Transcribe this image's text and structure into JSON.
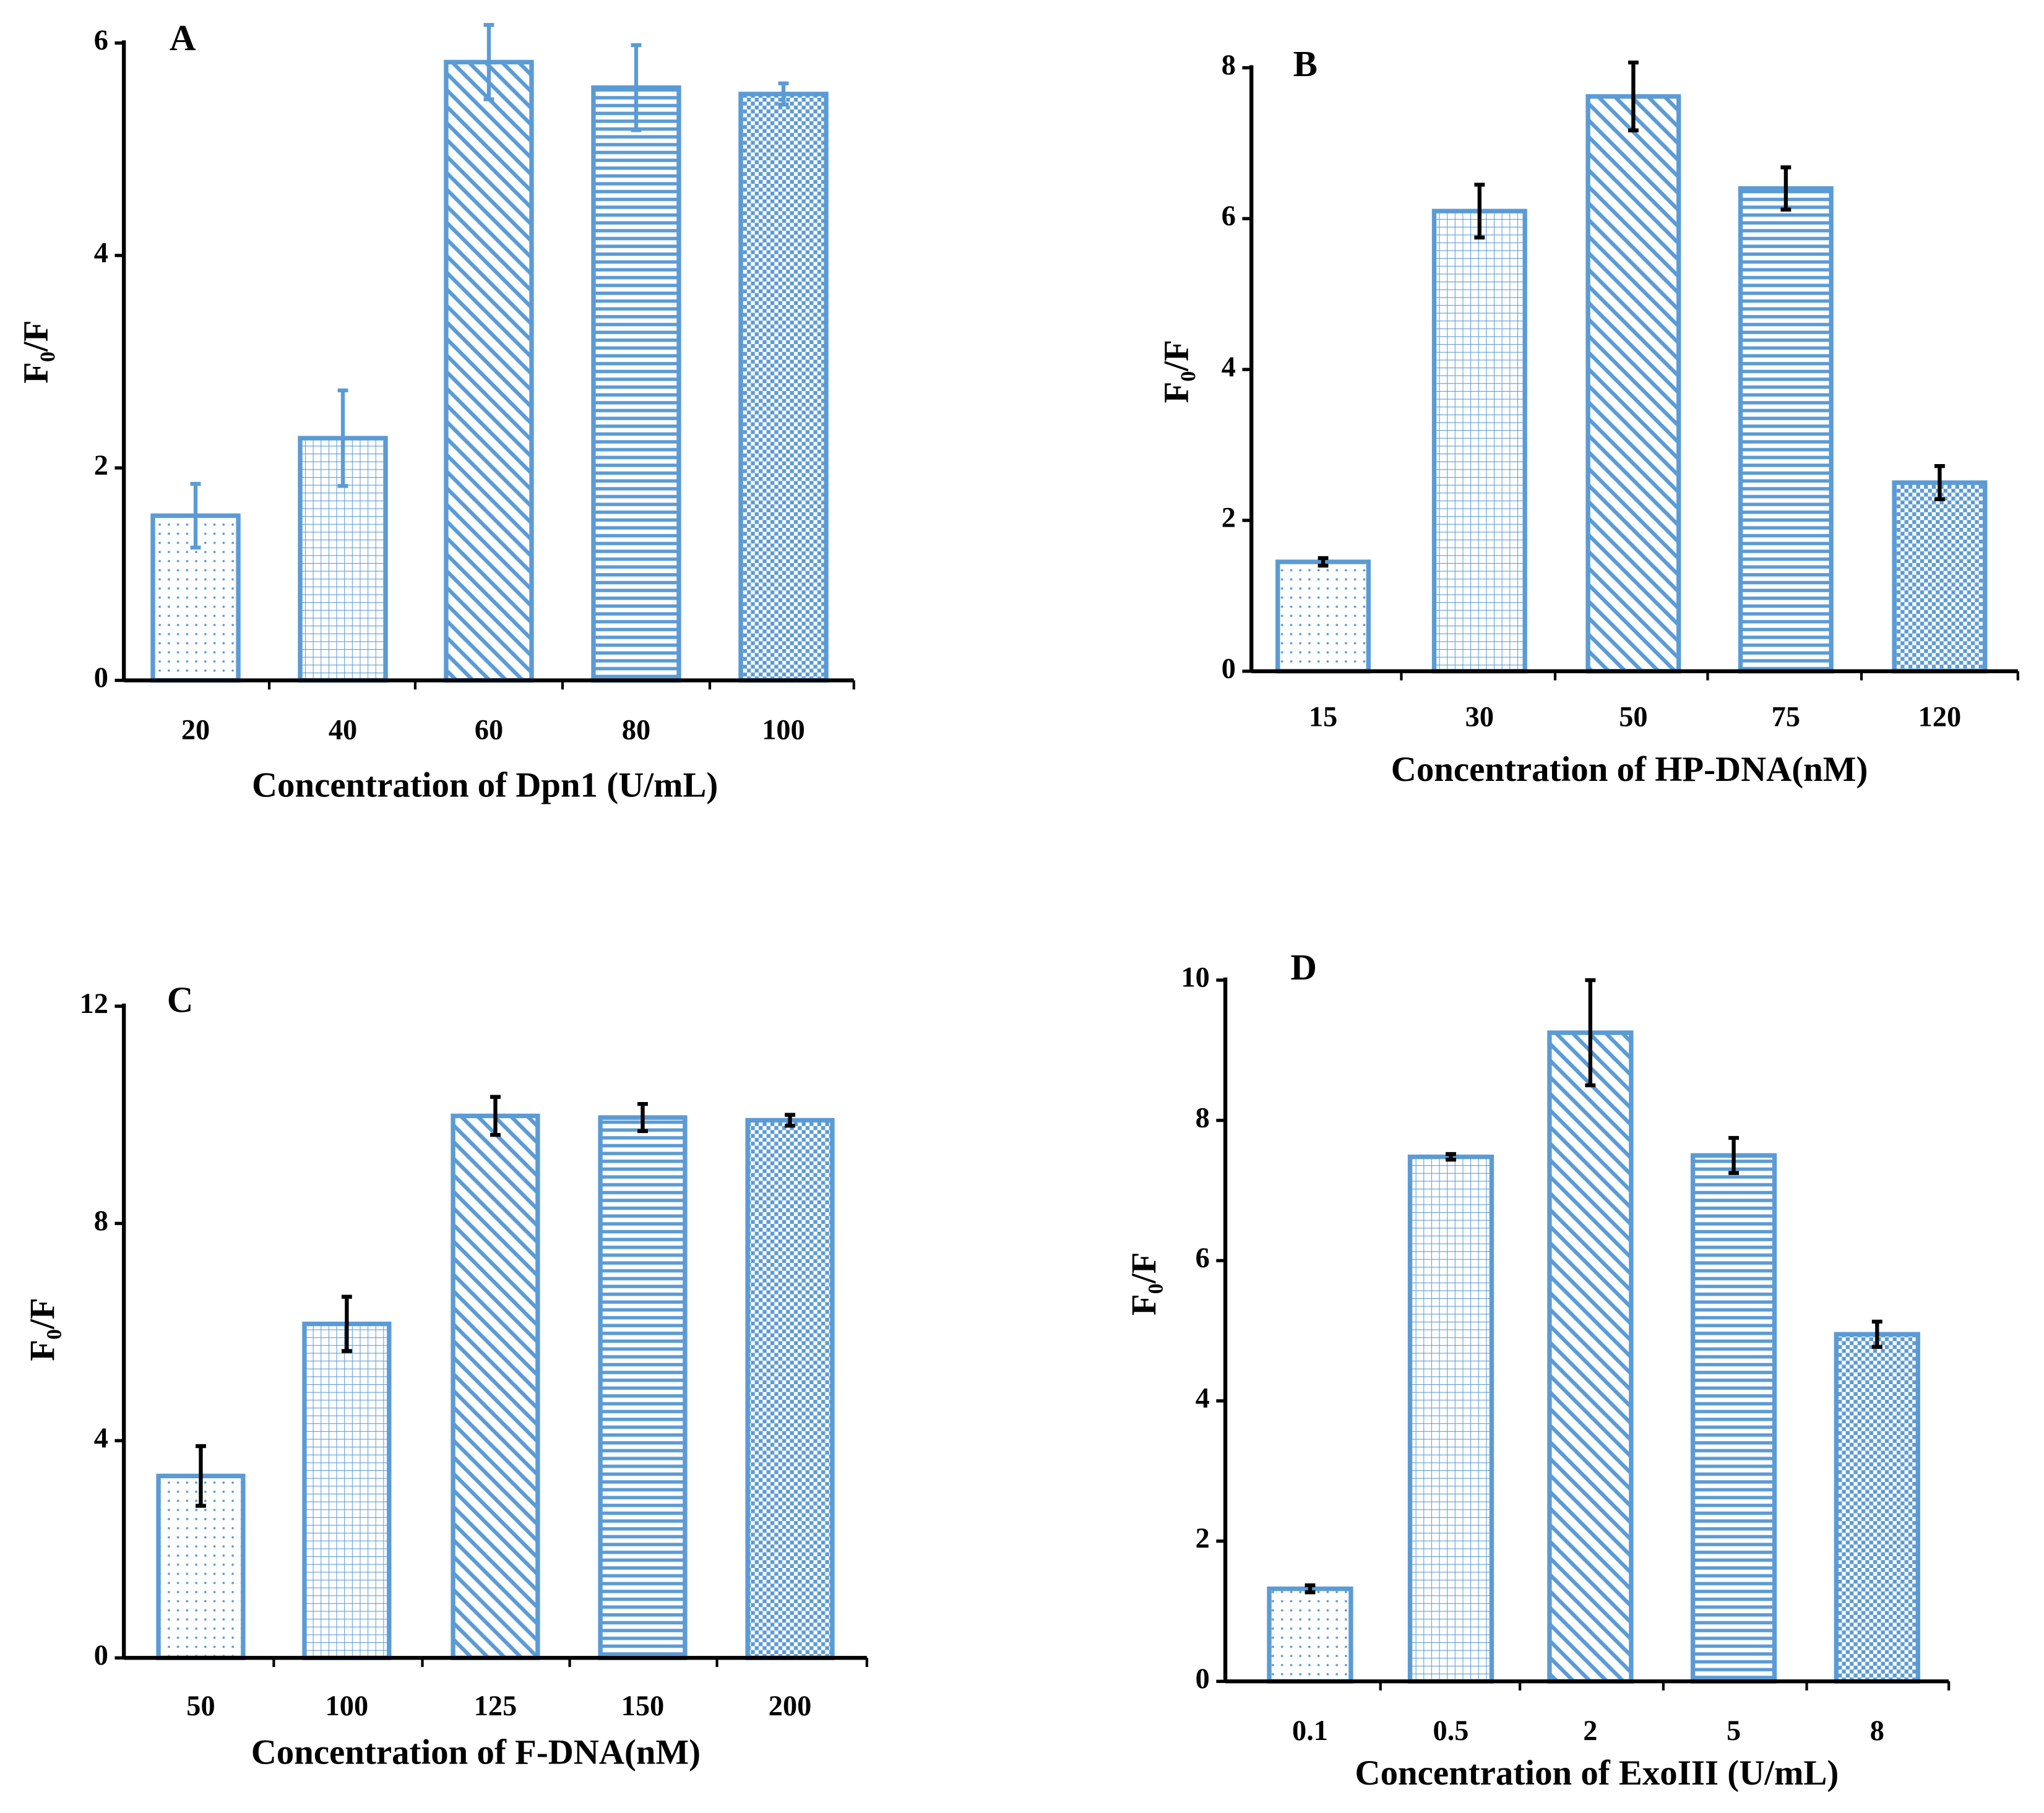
{
  "chart_data": [
    {
      "type": "bar",
      "panel_label": "A",
      "x_label": "Concentration of Dpn1 (U/mL)",
      "y_label": "F₀/F",
      "categories": [
        "20",
        "40",
        "60",
        "80",
        "100"
      ],
      "values": [
        1.55,
        2.28,
        5.82,
        5.58,
        5.52
      ],
      "errors": [
        0.3,
        0.45,
        0.35,
        0.4,
        0.1
      ],
      "color": "#5b9bd5",
      "error_color": "#5b9bd5",
      "ylim": [
        0,
        6
      ],
      "yticks": [
        0,
        2,
        4,
        6
      ]
    },
    {
      "type": "bar",
      "panel_label": "B",
      "x_label": "Concentration of HP-DNA(nM)",
      "y_label": "F₀/F",
      "categories": [
        "15",
        "30",
        "50",
        "75",
        "120"
      ],
      "values": [
        1.45,
        6.1,
        7.62,
        6.4,
        2.5
      ],
      "errors": [
        0.05,
        0.35,
        0.45,
        0.28,
        0.22
      ],
      "color": "#5b9bd5",
      "error_color": "#000000",
      "ylim": [
        0,
        8
      ],
      "yticks": [
        0,
        2,
        4,
        6,
        8
      ]
    },
    {
      "type": "bar",
      "panel_label": "C",
      "x_label": "Concentration of F-DNA(nM)",
      "y_label": "F₀/F",
      "categories": [
        "50",
        "100",
        "125",
        "150",
        "200"
      ],
      "values": [
        3.35,
        6.15,
        9.98,
        9.95,
        9.9
      ],
      "errors": [
        0.55,
        0.5,
        0.35,
        0.25,
        0.1
      ],
      "color": "#5b9bd5",
      "error_color": "#000000",
      "ylim": [
        0,
        12
      ],
      "yticks": [
        0,
        4,
        8,
        12
      ]
    },
    {
      "type": "bar",
      "panel_label": "D",
      "x_label": "Concentration of ExoIII (U/mL)",
      "y_label": "F₀/F",
      "categories": [
        "0.1",
        "0.5",
        "2",
        "5",
        "8"
      ],
      "values": [
        1.32,
        7.48,
        9.25,
        7.5,
        4.95
      ],
      "errors": [
        0.05,
        0.04,
        0.75,
        0.25,
        0.18
      ],
      "color": "#5b9bd5",
      "error_color": "#000000",
      "ylim": [
        0,
        10
      ],
      "yticks": [
        0,
        2,
        4,
        6,
        8,
        10
      ]
    }
  ]
}
